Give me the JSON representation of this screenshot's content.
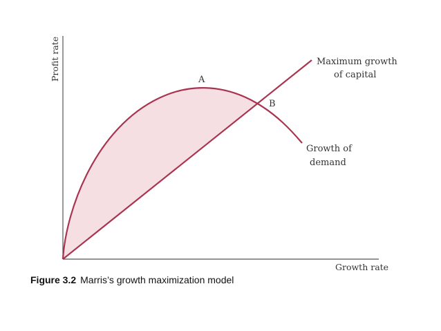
{
  "figure": {
    "axes": {
      "y_label": "Profit rate",
      "x_label": "Growth rate"
    },
    "curves": {
      "demand_label_line1": "Growth of",
      "demand_label_line2": "demand",
      "capital_label_line1": "Maximum growth",
      "capital_label_line2": "of capital"
    },
    "points": {
      "a": "A",
      "b": "B"
    },
    "colors": {
      "curve": "#a8344f",
      "fill": "#f5dfe3",
      "axis": "#555555"
    }
  },
  "caption": {
    "number": "Figure 3.2",
    "text": "Marris’s growth maximization model"
  }
}
